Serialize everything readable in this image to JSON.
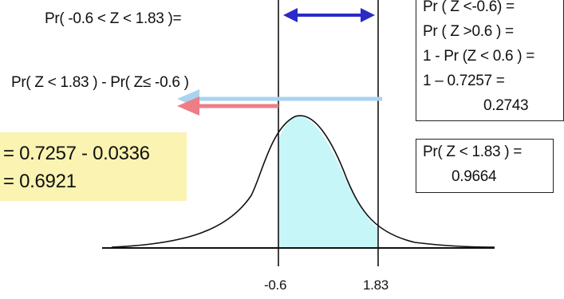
{
  "texts": {
    "top_expression": "Pr( -0.6 <  Z < 1.83 )=",
    "middle_expression": "Pr( Z < 1.83 ) - Pr( Z≤ -0.6 )",
    "tick_left": "-0.6",
    "tick_right": "1.83"
  },
  "highlight_box": {
    "line1": "= 0.7257 - 0.0336",
    "line2": "= 0.6921",
    "background": "#fbf3b1"
  },
  "right_box_top": {
    "lines": [
      "Pr ( Z <-0.6) =",
      "Pr ( Z >0.6 ) =",
      "1 - Pr (Z < 0.6 ) =",
      "1 – 0.7257 =",
      "0.2743"
    ]
  },
  "right_box_bottom": {
    "lines": [
      "Pr( Z < 1.83 ) =",
      "0.9664"
    ]
  },
  "colors": {
    "shaded_area": "#c6f6f8",
    "arrow_blue_dark": "#2a2ac8",
    "arrow_blue_light": "#a9d3f0",
    "arrow_red": "#ee7d86"
  }
}
